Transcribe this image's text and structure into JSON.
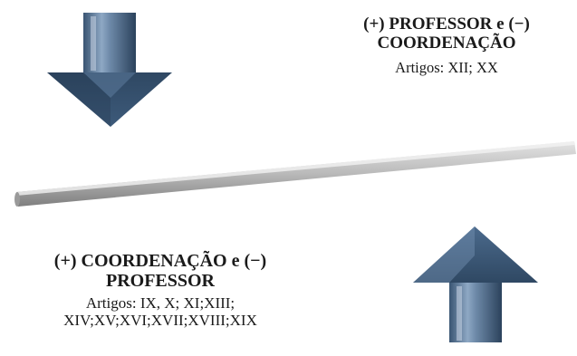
{
  "top_label": {
    "heading": "(+) PROFESSOR e (−) COORDENAÇÃO",
    "articles": "Artigos: XII; XX"
  },
  "bottom_label": {
    "heading": "(+) COORDENAÇÃO e (−) PROFESSOR",
    "articles": "Artigos: IX, X; XI;XIII; XIV;XV;XVI;XVII;XVIII;XIX"
  },
  "colors": {
    "arrow_dark": "#2f4863",
    "arrow_mid": "#4f6c8e",
    "arrow_light": "#9bb3cd",
    "beam_light": "#cfcfcf",
    "beam_dark": "#8a8a8a"
  },
  "icons": {
    "top_arrow": "down-arrow-icon",
    "bottom_arrow": "up-arrow-icon",
    "beam": "balance-beam"
  }
}
